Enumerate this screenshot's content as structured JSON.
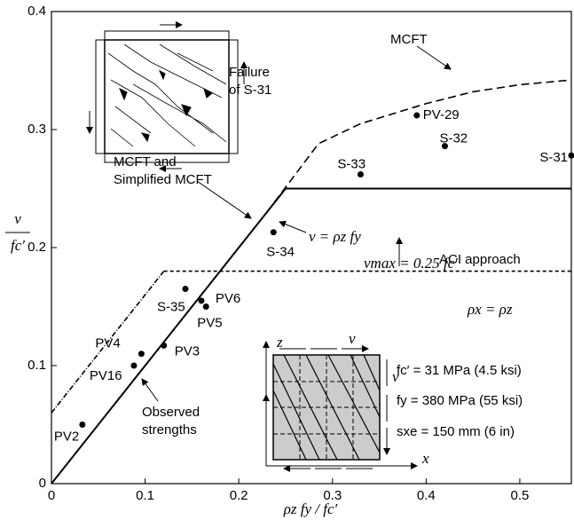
{
  "chart_data": {
    "type": "line",
    "xlim": [
      0,
      0.555
    ],
    "ylim": [
      0,
      0.4
    ],
    "xticks": [
      0,
      0.1,
      0.2,
      0.3,
      0.4,
      0.5
    ],
    "yticks": [
      0,
      0.1,
      0.2,
      0.3,
      0.4
    ],
    "x_label": "ρz fy / fc′",
    "y_label_num": "v",
    "y_label_den": "fc′",
    "series": [
      {
        "name": "MCFT",
        "color": "#000",
        "dash": "9,5",
        "x": [
          0.23,
          0.285,
          0.33,
          0.4,
          0.45,
          0.5,
          0.555
        ],
        "values": [
          0.23,
          0.288,
          0.305,
          0.322,
          0.332,
          0.338,
          0.342
        ]
      },
      {
        "name": "MCFT and\nSimplified MCFT",
        "color": "#000",
        "dash": "none",
        "x": [
          0,
          0.25,
          0.555
        ],
        "values": [
          0,
          0.25,
          0.25
        ]
      },
      {
        "name": "ACI approach",
        "color": "#000",
        "dash": "6,2,1,2",
        "x": [
          0,
          0.12
        ],
        "values": [
          0.06,
          0.18
        ]
      },
      {
        "name": "ACI approach",
        "color": "#000",
        "dash": "4,3",
        "x": [
          0.12,
          0.555
        ],
        "values": [
          0.18,
          0.18
        ]
      }
    ],
    "points": {
      "name": "Observed\nstrengths",
      "labels": [
        "PV2",
        "PV16",
        "PV4",
        "PV3",
        "S-35",
        "PV6",
        "PV5",
        "S-34",
        "S-33",
        "PV-29",
        "S-32",
        "S-31"
      ],
      "x": [
        0.033,
        0.088,
        0.096,
        0.12,
        0.143,
        0.16,
        0.165,
        0.237,
        0.33,
        0.39,
        0.42,
        0.555
      ],
      "values": [
        0.05,
        0.1,
        0.11,
        0.117,
        0.165,
        0.155,
        0.15,
        0.213,
        0.262,
        0.312,
        0.286,
        0.278
      ]
    },
    "annotations": {
      "failure": "Failure\nof S-31",
      "v_eq": "v = ρz fy",
      "vmax": "vmax = 0.25 fc′",
      "rho": "ρx = ρz",
      "fc": "fc′ = 31 MPa (4.5 ksi)",
      "fy": "fy = 380 MPa (55 ksi)",
      "sxe": "sxe = 150 mm (6 in)",
      "z_axis": "z",
      "x_axis": "x",
      "v_top": "v",
      "v_side": "v"
    }
  }
}
